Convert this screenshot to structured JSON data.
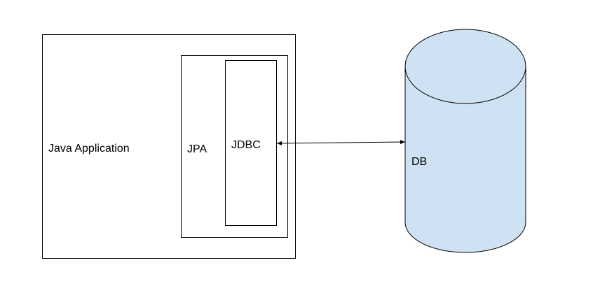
{
  "diagram": {
    "java_application": {
      "label": "Java Application"
    },
    "jpa": {
      "label": "JPA"
    },
    "jdbc": {
      "label": "JDBC"
    },
    "database": {
      "label": "DB",
      "fill_color": "#cfe2f3"
    },
    "connector": {
      "direction": "bidirectional"
    },
    "stroke_color": "#000000"
  }
}
